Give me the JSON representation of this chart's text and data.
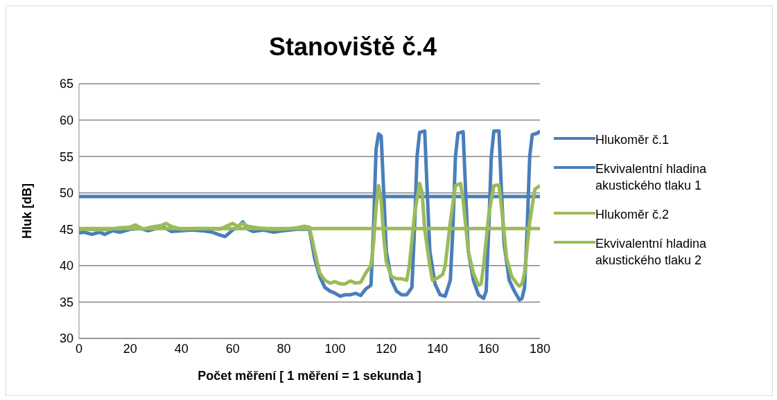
{
  "chart_data": {
    "type": "line",
    "title": "Stanoviště č.4",
    "xlabel": "Počet měření [ 1 měření = 1 sekunda ]",
    "ylabel": "Hluk [dB]",
    "xlim": [
      0,
      180
    ],
    "xticks": [
      0,
      20,
      40,
      60,
      80,
      100,
      120,
      140,
      160,
      180
    ],
    "ylim": [
      30,
      65
    ],
    "yticks": [
      30,
      35,
      40,
      45,
      50,
      55,
      60,
      65
    ],
    "grid": "y",
    "legend": "right",
    "marker": "none",
    "line_style": "solid",
    "series": [
      {
        "name": "Hlukoměr č.1",
        "color": "#4a7ebb",
        "x": [
          0,
          2,
          5,
          8,
          10,
          13,
          16,
          20,
          24,
          27,
          30,
          33,
          36,
          40,
          44,
          48,
          52,
          55,
          57,
          60,
          62,
          64,
          66,
          68,
          72,
          76,
          80,
          85,
          88,
          90,
          92,
          94,
          96,
          98,
          100,
          102,
          104,
          106,
          108,
          110,
          112,
          114,
          115,
          116,
          117,
          118,
          119,
          120,
          122,
          124,
          126,
          128,
          130,
          131,
          132,
          133,
          135,
          136,
          137,
          139,
          141,
          143,
          145,
          146,
          147,
          148,
          150,
          151,
          152,
          154,
          156,
          158,
          159,
          160,
          161,
          162,
          164,
          165,
          166,
          168,
          170,
          172,
          173,
          174,
          175,
          176,
          177,
          179,
          180
        ],
        "values": [
          44.5,
          44.6,
          44.3,
          44.6,
          44.3,
          44.8,
          44.6,
          45.0,
          45.1,
          44.8,
          45.1,
          45.3,
          44.7,
          44.8,
          44.9,
          44.8,
          44.6,
          44.2,
          44.0,
          44.9,
          45.3,
          46.0,
          45.0,
          44.7,
          44.9,
          44.6,
          44.8,
          45.0,
          45.0,
          45.0,
          41,
          38.5,
          37,
          36.5,
          36.2,
          35.8,
          36.0,
          36.0,
          36.2,
          35.9,
          36.8,
          37.3,
          45,
          56,
          58.1,
          57.8,
          50,
          42,
          38,
          36.5,
          36.0,
          36.0,
          37,
          45,
          55,
          58.3,
          58.5,
          50,
          42,
          37.5,
          36.0,
          35.8,
          38,
          45,
          55,
          58.2,
          58.4,
          50,
          42,
          38,
          36,
          35.5,
          36.5,
          45,
          55,
          58.5,
          58.5,
          50,
          43,
          38,
          36.5,
          35.3,
          35.5,
          37,
          45,
          55,
          58,
          58.2,
          58.5
        ]
      },
      {
        "name": "Ekvivalentní hladina akustického tlaku 1",
        "color": "#4a7ebb",
        "x": [
          0,
          180
        ],
        "values": [
          49.5,
          49.5
        ]
      },
      {
        "name": "Hlukoměr č.2",
        "color": "#9bbb59",
        "x": [
          0,
          3,
          8,
          12,
          16,
          20,
          22,
          25,
          28,
          32,
          34,
          36,
          40,
          45,
          50,
          55,
          58,
          60,
          62,
          64,
          66,
          70,
          75,
          80,
          85,
          88,
          90,
          92,
          94,
          96,
          98,
          100,
          102,
          104,
          106,
          108,
          110,
          112,
          114,
          115,
          116,
          117,
          118,
          119,
          120,
          122,
          124,
          126,
          128,
          129,
          131,
          133,
          134,
          135,
          137,
          138,
          140,
          142,
          143,
          145,
          147,
          149,
          150,
          152,
          154,
          156,
          157,
          158,
          160,
          162,
          164,
          165,
          167,
          169,
          171,
          172,
          173,
          174,
          176,
          178,
          180
        ],
        "values": [
          45.0,
          45.0,
          44.9,
          45.0,
          45.2,
          45.3,
          45.6,
          45.0,
          45.3,
          45.5,
          45.8,
          45.4,
          45.0,
          45.1,
          45.1,
          45.0,
          45.5,
          45.8,
          45.4,
          45.8,
          45.4,
          45.2,
          45.0,
          45.0,
          45.2,
          45.4,
          45.3,
          42,
          39,
          38,
          37.6,
          37.8,
          37.5,
          37.5,
          37.9,
          37.6,
          37.7,
          39,
          40,
          43,
          48,
          51,
          49,
          44,
          40.5,
          38.5,
          38.2,
          38.2,
          38.0,
          40,
          47,
          51.3,
          50,
          45,
          40,
          38,
          38.3,
          38.8,
          40,
          46,
          51,
          51.3,
          49,
          42,
          39,
          37.3,
          37.5,
          40,
          47,
          51,
          51.1,
          48,
          41,
          38.5,
          37.5,
          37.2,
          37.5,
          39,
          46,
          50.5,
          51.0
        ]
      },
      {
        "name": "Ekvivalentní hladina akustického tlaku 2",
        "color": "#9bbb59",
        "x": [
          0,
          180
        ],
        "values": [
          45.1,
          45.1
        ]
      }
    ]
  }
}
